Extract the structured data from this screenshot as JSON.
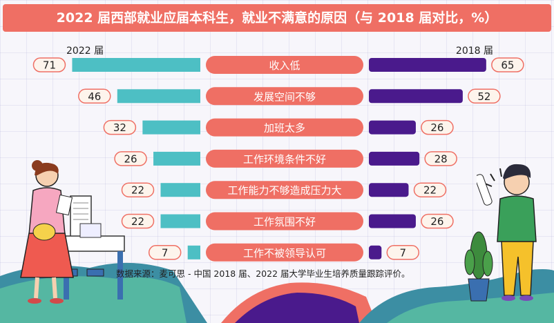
{
  "colors": {
    "title_bg": "#ef6f64",
    "bar_2022": "#4dbfc4",
    "bar_2018": "#4a1a8c",
    "category_pill": "#ef6f64",
    "bubble_border": "#ef6f64",
    "bubble_fill": "#fdf4ec"
  },
  "chart_data": {
    "type": "bar",
    "orientation": "horizontal-butterfly",
    "title": "2022 届西部就业应届本科生，就业不满意的原因（与 2018 届对比，%）",
    "categories": [
      "收入低",
      "发展空间不够",
      "加班太多",
      "工作环境条件不好",
      "工作能力不够造成压力大",
      "工作氛围不好",
      "工作不被领导认可"
    ],
    "series": [
      {
        "name": "2022 届",
        "side": "left",
        "values": [
          71,
          46,
          32,
          26,
          22,
          22,
          7
        ]
      },
      {
        "name": "2018 届",
        "side": "right",
        "values": [
          65,
          52,
          26,
          28,
          22,
          26,
          7
        ]
      }
    ],
    "xlim": [
      0,
      75
    ],
    "grid": false,
    "legend": "series labels above each side"
  },
  "source": "数据来源：麦可思 - 中国 2018 届、2022 届大学毕业生培养质量跟踪评价。",
  "icons": [
    "woman-with-clipboard-illustration",
    "boy-with-scroll-illustration",
    "potted-cactus-illustration",
    "desk-illustration"
  ]
}
